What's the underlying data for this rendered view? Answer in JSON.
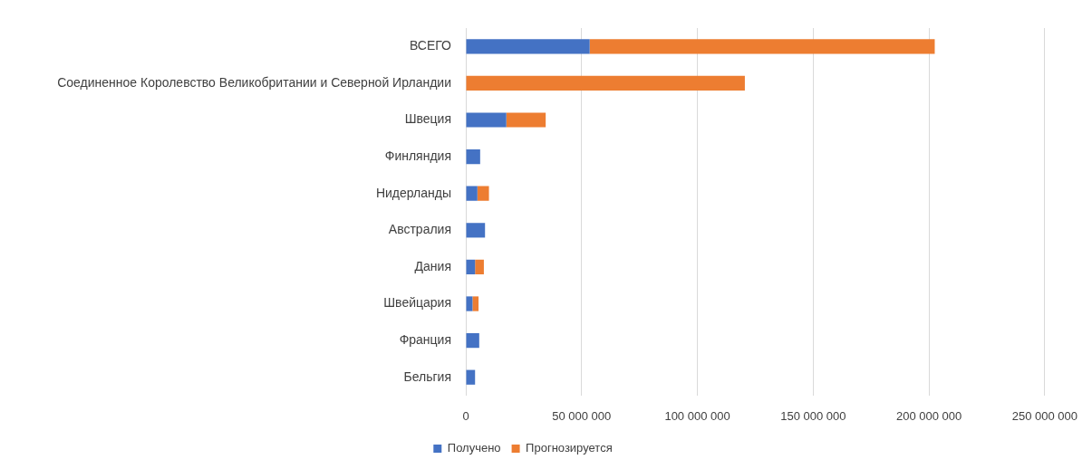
{
  "chart_data": {
    "type": "bar",
    "orientation": "horizontal",
    "stacked": true,
    "categories": [
      "ВСЕГО",
      "Соединенное Королевство Великобритании и Северной Ирландии",
      "Швеция",
      "Финляндия",
      "Нидерланды",
      "Австралия",
      "Дания",
      "Швейцария",
      "Франция",
      "Бельгия"
    ],
    "series": [
      {
        "name": "Получено",
        "color": "#4472c4",
        "values": [
          53500000,
          null,
          17500000,
          6200000,
          5000000,
          8300000,
          4000000,
          2900000,
          5800000,
          4000000
        ]
      },
      {
        "name": "Прогнозируется",
        "color": "#ed7d31",
        "values": [
          149000000,
          120500000,
          17000000,
          null,
          5000000,
          null,
          3800000,
          2600000,
          null,
          null
        ]
      }
    ],
    "xlim": [
      0,
      250000000
    ],
    "xticks": [
      0,
      {
        "value": 50000000,
        "label": "50 000 000"
      },
      {
        "value": 100000000,
        "label": "100 000 000"
      },
      {
        "value": 150000000,
        "label": "150 000 000"
      },
      {
        "value": 200000000,
        "label": "200 000 000"
      },
      {
        "value": 250000000,
        "label": "250 000 000"
      }
    ],
    "grid": "x",
    "legend": "bottom"
  }
}
